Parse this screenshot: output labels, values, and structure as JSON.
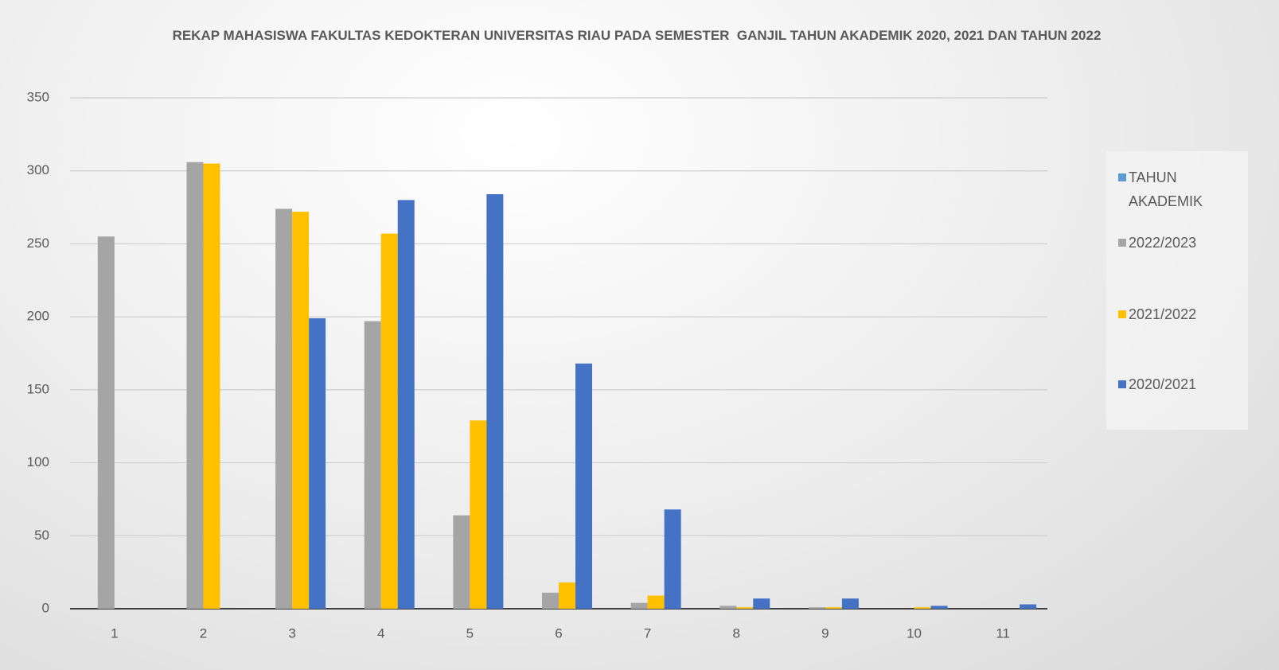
{
  "chart_data": {
    "type": "bar",
    "title": "REKAP MAHASISWA FAKULTAS KEDOKTERAN UNIVERSITAS RIAU PADA SEMESTER  GANJIL TAHUN AKADEMIK 2020, 2021 DAN TAHUN 2022",
    "categories": [
      1,
      2,
      3,
      4,
      5,
      6,
      7,
      8,
      9,
      10,
      11
    ],
    "series": [
      {
        "name": "TAHUN AKADEMIK",
        "color": "#5b9bd5",
        "values": [
          null,
          null,
          null,
          null,
          null,
          null,
          null,
          null,
          null,
          null,
          null
        ]
      },
      {
        "name": "2022/2023",
        "color": "#a5a5a5",
        "values": [
          255,
          306,
          274,
          197,
          64,
          11,
          4,
          2,
          1,
          0,
          0
        ]
      },
      {
        "name": "2021/2022",
        "color": "#ffc000",
        "values": [
          0,
          305,
          272,
          257,
          129,
          18,
          9,
          1,
          1,
          1,
          0
        ]
      },
      {
        "name": "2020/2021",
        "color": "#4472c4",
        "values": [
          0,
          0,
          199,
          280,
          284,
          168,
          68,
          7,
          7,
          2,
          3
        ]
      }
    ],
    "ylim": [
      0,
      350
    ],
    "yticks": [
      0,
      50,
      100,
      150,
      200,
      250,
      300,
      350
    ],
    "grid": true,
    "legend": "right"
  }
}
